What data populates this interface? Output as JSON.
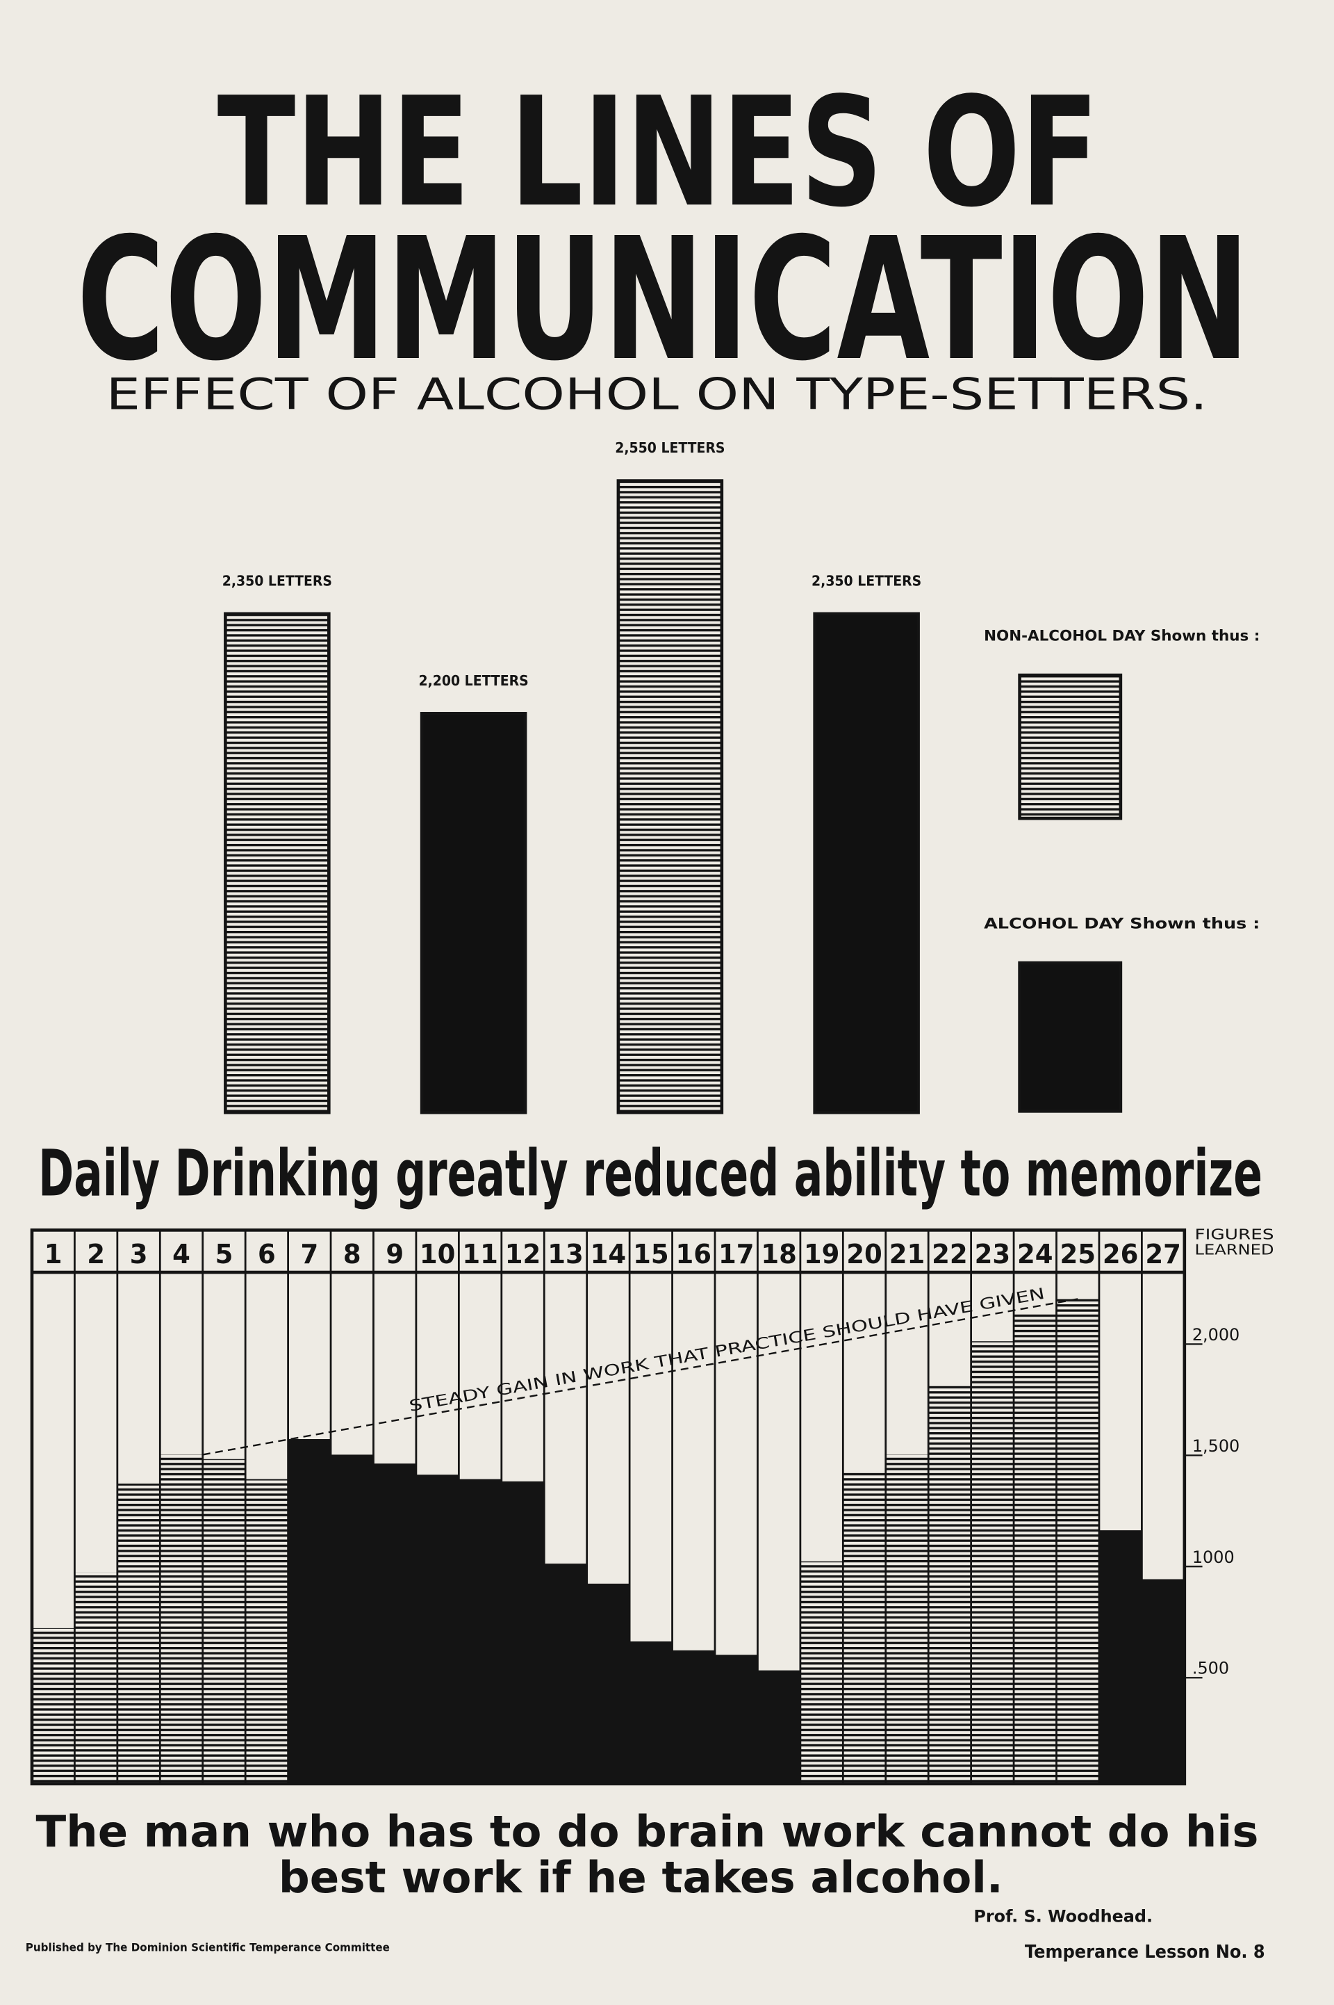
{
  "poster": {
    "title_lines": [
      "THE LINES OF",
      "COMMUNICATION"
    ],
    "quote_lines": [
      "The man who has to do brain work cannot do his",
      "best work if he takes alcohol."
    ],
    "attribution": "Prof. S. Woodhead.",
    "publisher": "Published by The Dominion Scientific Temperance Committee",
    "lesson": "Temperance Lesson No. 8"
  },
  "chart_data": [
    {
      "type": "bar",
      "title": "EFFECT OF ALCOHOL ON TYPE-SETTERS.",
      "categories": [
        null,
        null,
        null,
        null
      ],
      "ylim": [
        1600,
        2600
      ],
      "series": [
        {
          "name": "NON-ALCOHOL DAY Shown thus :",
          "color": "hatched",
          "values": [
            2350,
            null,
            2550,
            null
          ],
          "value_labels": [
            "2,350 LETTERS",
            null,
            "2,550 LETTERS",
            null
          ]
        },
        {
          "name": "ALCOHOL DAY Shown thus :",
          "color": "#111111",
          "values": [
            null,
            2200,
            null,
            2350
          ],
          "value_labels": [
            null,
            "2,200 LETTERS",
            null,
            "2,350 LETTERS"
          ]
        }
      ]
    },
    {
      "type": "column-grid",
      "title": "Daily Drinking greatly reduced ability to memorize",
      "ylabel_lines": [
        "FIGURES",
        "LEARNED"
      ],
      "categories": [
        "1",
        "2",
        "3",
        "4",
        "5",
        "6",
        "7",
        "8",
        "9",
        "10",
        "11",
        "12",
        "13",
        "14",
        "15",
        "16",
        "17",
        "18",
        "19",
        "20",
        "21",
        "22",
        "23",
        "24",
        "25",
        "26",
        "27"
      ],
      "values": [
        700,
        950,
        1350,
        1480,
        1460,
        1370,
        1550,
        1480,
        1440,
        1390,
        1370,
        1360,
        990,
        900,
        640,
        600,
        580,
        510,
        1000,
        1400,
        1480,
        1800,
        1990,
        2120,
        2180,
        1140,
        920
      ],
      "bar_styles": [
        "hatched",
        "hatched",
        "hatched",
        "hatched",
        "hatched",
        "hatched",
        "solid",
        "solid",
        "solid",
        "solid",
        "solid",
        "solid",
        "solid",
        "solid",
        "solid",
        "solid",
        "solid",
        "solid",
        "hatched",
        "hatched",
        "hatched",
        "hatched",
        "hatched",
        "hatched",
        "hatched",
        "solid",
        "solid"
      ],
      "ylim": [
        0,
        2300
      ],
      "yticks": [
        {
          "value": 500,
          "label": ".500"
        },
        {
          "value": 1000,
          "label": "1000"
        },
        {
          "value": 1500,
          "label": "1,500"
        },
        {
          "value": 2000,
          "label": "2,000"
        }
      ],
      "trend_line": {
        "text": "STEADY GAIN IN WORK THAT PRACTICE SHOULD HAVE GIVEN",
        "start": {
          "category": "5",
          "value": 1480
        },
        "end": {
          "category": "25",
          "value": 2180
        }
      }
    }
  ]
}
